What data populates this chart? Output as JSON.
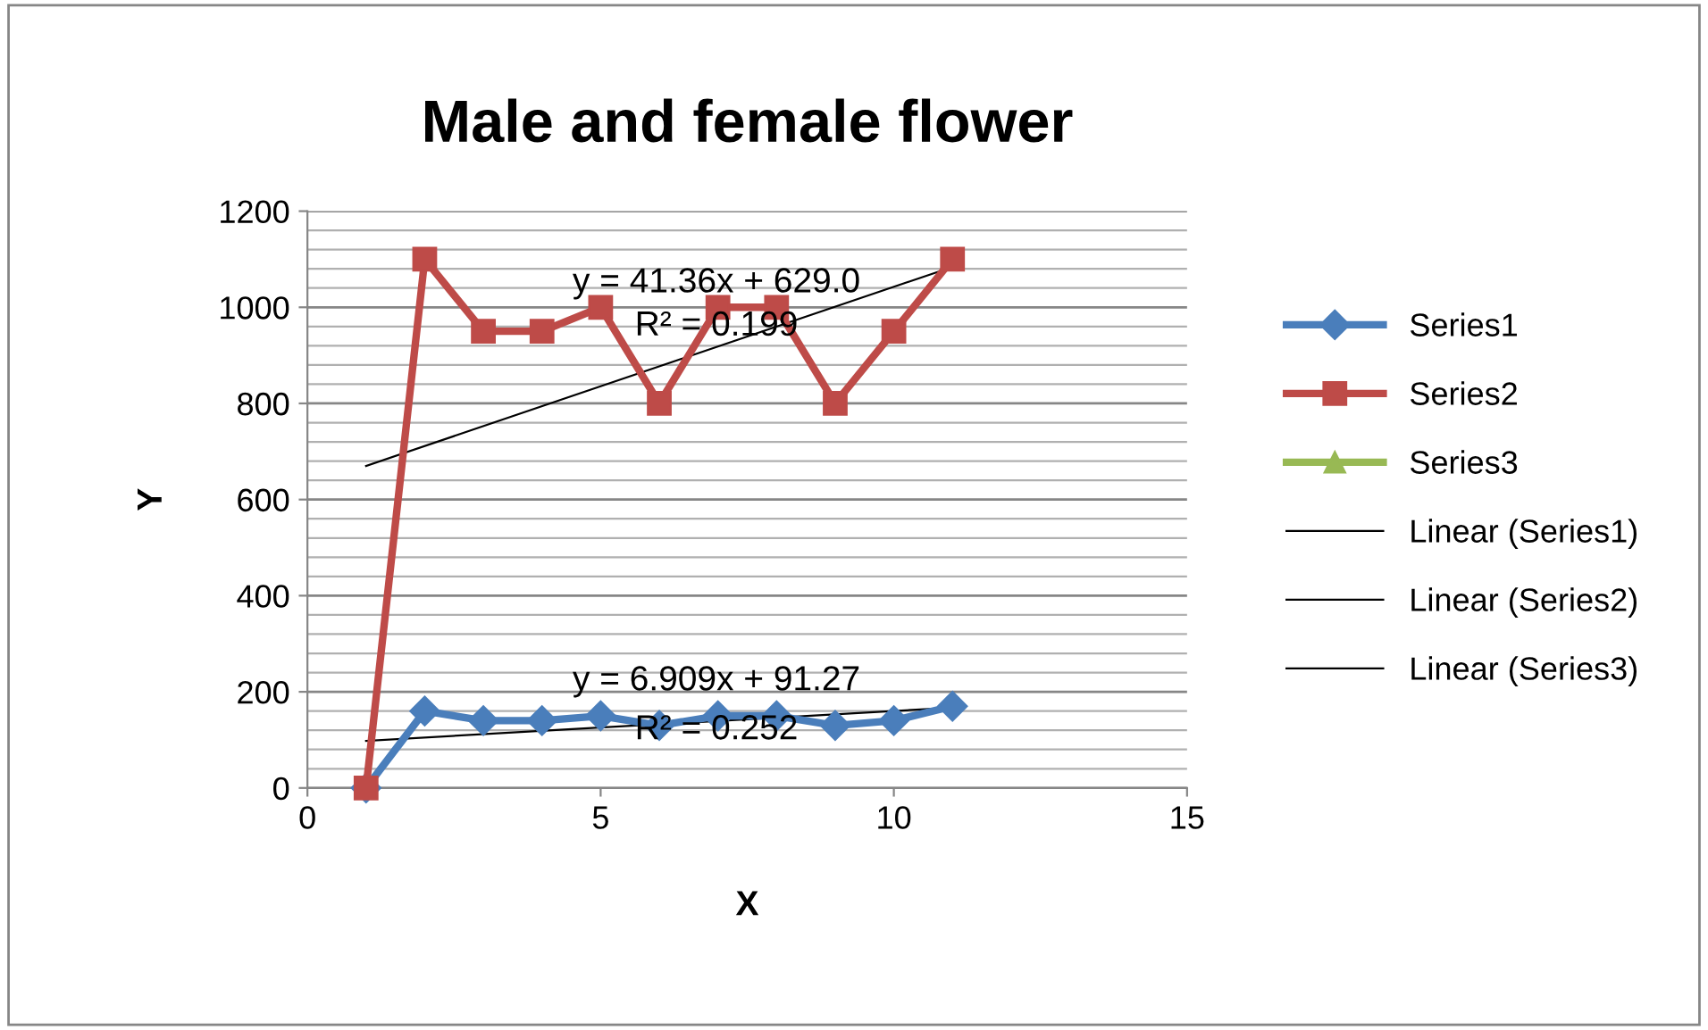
{
  "chart_data": {
    "type": "line",
    "title": "Male and female flower",
    "xlabel": "X",
    "ylabel": "Y",
    "xlim": [
      0,
      15
    ],
    "xticks": [
      0,
      5,
      10,
      15
    ],
    "ylim": [
      0,
      1200
    ],
    "yticks": [
      0,
      200,
      400,
      600,
      800,
      1000,
      1200
    ],
    "grid": "y",
    "legend": "right",
    "series": [
      {
        "name": "Series1",
        "color": "#4a7ebb",
        "marker": "diamond",
        "x": [
          1,
          2,
          3,
          4,
          5,
          6,
          7,
          8,
          9,
          10,
          11
        ],
        "values": [
          0,
          160,
          140,
          140,
          150,
          130,
          150,
          150,
          130,
          140,
          170
        ]
      },
      {
        "name": "Series2",
        "color": "#be4b48",
        "marker": "square",
        "x": [
          1,
          2,
          3,
          4,
          5,
          6,
          7,
          8,
          9,
          10,
          11
        ],
        "values": [
          0,
          1100,
          950,
          950,
          1000,
          800,
          1000,
          1000,
          800,
          950,
          1100
        ]
      },
      {
        "name": "Series3",
        "color": "#98b954",
        "marker": "triangle"
      },
      {
        "name": "Linear (Series1)",
        "color": "#000000",
        "marker": "none",
        "x": [
          1,
          11
        ],
        "values": [
          98,
          167
        ]
      },
      {
        "name": "Linear (Series2)",
        "color": "#000000",
        "marker": "none",
        "x": [
          1,
          11
        ],
        "values": [
          670,
          1084
        ]
      },
      {
        "name": "Linear (Series3)",
        "color": "#000000",
        "marker": "none"
      }
    ],
    "annotations": [
      "y = 41.36x + 629.0",
      "R² = 0.199",
      "y = 6.909x + 91.27",
      "R² = 0.252"
    ]
  }
}
